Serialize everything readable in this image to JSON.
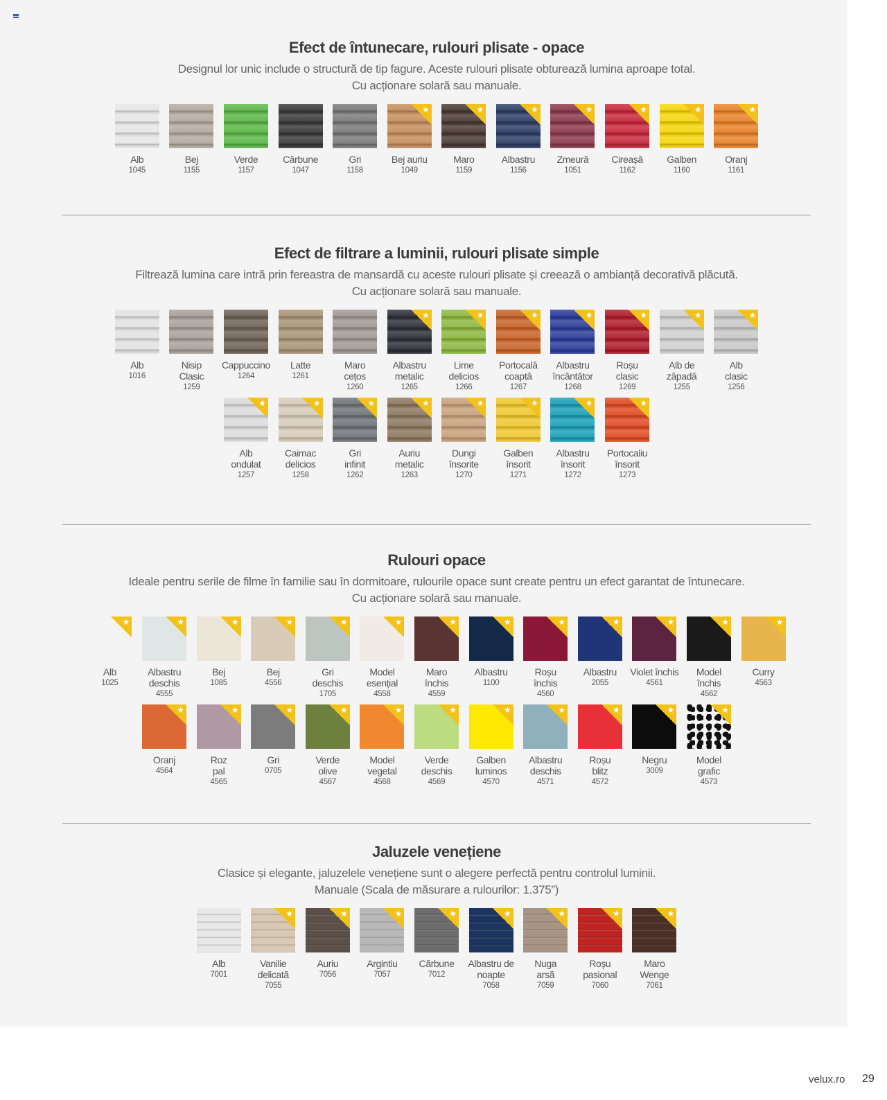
{
  "sections": [
    {
      "title": "Efect de întunecare, rulouri plisate - opace",
      "description": "Designul lor unic include o structură de tip fagure. Aceste rulouri plisate obturează lumina aproape total.\nCu acționare solară sau manuale.",
      "style": "pleat",
      "rows": [
        [
          {
            "name": "Alb",
            "code": "1045",
            "color": "#e6e6e6",
            "star": false
          },
          {
            "name": "Bej",
            "code": "1155",
            "color": "#b3aa9f",
            "star": false
          },
          {
            "name": "Verde",
            "code": "1157",
            "color": "#5cb848",
            "star": false
          },
          {
            "name": "Cărbune",
            "code": "1047",
            "color": "#3a3a3a",
            "star": false
          },
          {
            "name": "Gri",
            "code": "1158",
            "color": "#7a7a7a",
            "star": false
          },
          {
            "name": "Bej auriu",
            "code": "1049",
            "color": "#c58e5e",
            "star": true
          },
          {
            "name": "Maro",
            "code": "1159",
            "color": "#4a3a34",
            "star": true
          },
          {
            "name": "Albastru",
            "code": "1156",
            "color": "#2d3e66",
            "star": true
          },
          {
            "name": "Zmeură",
            "code": "1051",
            "color": "#8c3a4e",
            "star": true
          },
          {
            "name": "Cireașă",
            "code": "1162",
            "color": "#c8283c",
            "star": true
          },
          {
            "name": "Galben",
            "code": "1160",
            "color": "#f5d60a",
            "star": true
          },
          {
            "name": "Oranj",
            "code": "1161",
            "color": "#e8822a",
            "star": true
          }
        ]
      ]
    },
    {
      "title": "Efect de filtrare a luminii, rulouri plisate simple",
      "description": "Filtrează lumina care intră prin fereastra de mansardă cu aceste rulouri plisate și creează o ambianță decorativă plăcută.\nCu acționare solară sau manuale.",
      "style": "pleat",
      "rows": [
        [
          {
            "name": "Alb",
            "code": "1016",
            "color": "#e2e2e2",
            "star": false
          },
          {
            "name": "Nisip\nClasic",
            "code": "1259",
            "color": "#a8a09a",
            "star": false
          },
          {
            "name": "Cappuccino",
            "code": "1264",
            "color": "#6e6256",
            "star": false
          },
          {
            "name": "Latte",
            "code": "1261",
            "color": "#a89478",
            "star": false
          },
          {
            "name": "Maro\ncețos",
            "code": "1260",
            "color": "#a09894",
            "star": false
          },
          {
            "name": "Albastru\nmetalic",
            "code": "1265",
            "color": "#2e3038",
            "star": true
          },
          {
            "name": "Lime\ndelicios",
            "code": "1266",
            "color": "#8cb840",
            "star": true
          },
          {
            "name": "Portocală\ncoaptă",
            "code": "1267",
            "color": "#c86428",
            "star": true
          },
          {
            "name": "Albastru\nîncântător",
            "code": "1268",
            "color": "#2c3c98",
            "star": true
          },
          {
            "name": "Roșu\nclasic",
            "code": "1269",
            "color": "#b01c2c",
            "star": true
          },
          {
            "name": "Alb de\nzăpadă",
            "code": "1255",
            "color": "#d0d0d0",
            "star": true
          },
          {
            "name": "Alb\nclasic",
            "code": "1256",
            "color": "#c8c8c8",
            "star": true
          }
        ],
        [
          {
            "name": "Alb\nondulat",
            "code": "1257",
            "color": "#dcdcdc",
            "star": true
          },
          {
            "name": "Caimac\ndelicios",
            "code": "1258",
            "color": "#d8ccb8",
            "star": true
          },
          {
            "name": "Gri\ninfinit",
            "code": "1262",
            "color": "#707478",
            "star": true
          },
          {
            "name": "Auriu\nmetalic",
            "code": "1263",
            "color": "#8c7860",
            "star": true
          },
          {
            "name": "Dungi\nînsorite",
            "code": "1270",
            "color": "#c8a07c",
            "star": true
          },
          {
            "name": "Galben\nînsorit",
            "code": "1271",
            "color": "#f0c830",
            "star": true
          },
          {
            "name": "Albastru\nînsorit",
            "code": "1272",
            "color": "#1ca0b8",
            "star": true
          },
          {
            "name": "Portocaliu\nînsorit",
            "code": "1273",
            "color": "#e04c24",
            "star": true
          }
        ]
      ]
    },
    {
      "title": "Rulouri opace",
      "description": "Ideale pentru serile de filme în familie sau în dormitoare, rulourile opace sunt create pentru un efect garantat de întunecare.\nCu acționare solară sau manuale.",
      "style": "flat",
      "rows": [
        [
          {
            "name": "Alb",
            "code": "1025",
            "color": "#f4f4f4",
            "star": true
          },
          {
            "name": "Albastru\ndeschis",
            "code": "4555",
            "color": "#dfe6e6",
            "star": true
          },
          {
            "name": "Bej",
            "code": "1085",
            "color": "#ece6d8",
            "star": true
          },
          {
            "name": "Bej",
            "code": "4556",
            "color": "#d8cbb8",
            "star": true
          },
          {
            "name": "Gri\ndeschis",
            "code": "1705",
            "color": "#bcc6c0",
            "star": true
          },
          {
            "name": "Model\nesențial",
            "code": "4558",
            "color": "#f0ebe4",
            "star": true
          },
          {
            "name": "Maro\nînchis",
            "code": "4559",
            "color": "#5a3432",
            "star": true
          },
          {
            "name": "Albastru",
            "code": "1100",
            "color": "#142848",
            "star": true
          },
          {
            "name": "Roșu\nînchis",
            "code": "4560",
            "color": "#8c1838",
            "star": true
          },
          {
            "name": "Albastru",
            "code": "2055",
            "color": "#203478",
            "star": true
          },
          {
            "name": "Violet închis",
            "code": "4561",
            "color": "#5c2440",
            "star": true
          },
          {
            "name": "Model\nînchis",
            "code": "4562",
            "color": "#1a1a1a",
            "star": true
          },
          {
            "name": "Curry",
            "code": "4563",
            "color": "#e8b44c",
            "star": true
          }
        ],
        [
          {
            "name": "Oranj",
            "code": "4564",
            "color": "#dc6834",
            "star": true
          },
          {
            "name": "Roz\npal",
            "code": "4565",
            "color": "#b098a4",
            "star": true
          },
          {
            "name": "Gri",
            "code": "0705",
            "color": "#7c7c7c",
            "star": true
          },
          {
            "name": "Verde\nolive",
            "code": "4567",
            "color": "#6c8040",
            "star": true
          },
          {
            "name": "Model\nvegetal",
            "code": "4568",
            "color": "#f08830",
            "star": true
          },
          {
            "name": "Verde\ndeschis",
            "code": "4569",
            "color": "#bcdc80",
            "star": true
          },
          {
            "name": "Galben\nluminos",
            "code": "4570",
            "color": "#fce800",
            "star": true
          },
          {
            "name": "Albastru\ndeschis",
            "code": "4571",
            "color": "#90b0bc",
            "star": true
          },
          {
            "name": "Roșu\nblitz",
            "code": "4572",
            "color": "#e83038",
            "star": true
          },
          {
            "name": "Negru",
            "code": "3009",
            "color": "#0c0c0c",
            "star": true
          },
          {
            "name": "Model\ngrafic",
            "code": "4573",
            "color": "#f4f4f4",
            "star": true,
            "pattern": "grafic"
          }
        ]
      ]
    },
    {
      "title": "Jaluzele venețiene",
      "description": "Clasice și elegante, jaluzelele venețiene sunt o alegere perfectă pentru controlul luminii.\nManuale (Scala de măsurare a rulourilor: 1.375”)",
      "style": "venetian",
      "rows": [
        [
          {
            "name": "Alb",
            "code": "7001",
            "color": "#e8e8e8",
            "star": false
          },
          {
            "name": "Vanilie\ndelicată",
            "code": "7055",
            "color": "#d8c8b4",
            "star": true
          },
          {
            "name": "Auriu",
            "code": "7056",
            "color": "#5c5048",
            "star": true
          },
          {
            "name": "Argintiu",
            "code": "7057",
            "color": "#b8b8b8",
            "star": true
          },
          {
            "name": "Cărbune",
            "code": "7012",
            "color": "#6c6c6c",
            "star": true
          },
          {
            "name": "Albastru de\nnoapte",
            "code": "7058",
            "color": "#1c3460",
            "star": true
          },
          {
            "name": "Nuga\narsă",
            "code": "7059",
            "color": "#a89484",
            "star": true
          },
          {
            "name": "Roșu\npasional",
            "code": "7060",
            "color": "#c02420",
            "star": true
          },
          {
            "name": "Maro\nWenge",
            "code": "7061",
            "color": "#4c3028",
            "star": true
          }
        ]
      ]
    }
  ],
  "star_icon": "star-icon",
  "star_color": "#f2c21b",
  "footer": {
    "site": "velux.ro",
    "page": "29"
  }
}
